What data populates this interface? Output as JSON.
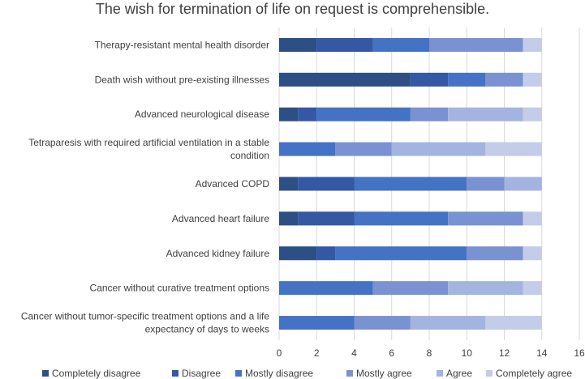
{
  "chart_data": {
    "type": "bar",
    "orientation": "horizontal",
    "stacked": true,
    "title": "The wish for termination of life on request is comprehensible.",
    "xlim": [
      0,
      16
    ],
    "xticks": [
      0,
      2,
      4,
      6,
      8,
      10,
      12,
      14,
      16
    ],
    "grid": "vertical",
    "legend_position": "bottom",
    "categories": [
      [
        "Therapy-resistant mental health disorder"
      ],
      [
        "Death wish without pre-existing illnesses"
      ],
      [
        "Advanced neurological disease"
      ],
      [
        "Tetraparesis with required artificial ventilation in a stable",
        "condition"
      ],
      [
        "Advanced COPD"
      ],
      [
        "Advanced heart failure"
      ],
      [
        "Advanced kidney failure"
      ],
      [
        "Cancer without curative treatment options"
      ],
      [
        "Cancer without tumor-specific treatment options and a life",
        "expectancy of days to weeks"
      ]
    ],
    "series": [
      {
        "name": "Completely disagree",
        "color": "#2e4f86",
        "values": [
          2,
          7,
          1,
          0,
          1,
          1,
          2,
          0,
          0
        ]
      },
      {
        "name": "Disagree",
        "color": "#3458a3",
        "values": [
          3,
          2,
          1,
          0,
          3,
          3,
          1,
          0,
          0
        ]
      },
      {
        "name": "Mostly disagree",
        "color": "#4472c4",
        "values": [
          3,
          2,
          5,
          3,
          6,
          5,
          7,
          5,
          4
        ]
      },
      {
        "name": "Mostly agree",
        "color": "#7a92d2",
        "values": [
          5,
          2,
          2,
          3,
          2,
          4,
          3,
          4,
          3
        ]
      },
      {
        "name": "Agree",
        "color": "#a4b4e0",
        "values": [
          0,
          0,
          4,
          5,
          2,
          0,
          0,
          4,
          4
        ]
      },
      {
        "name": "Completely agree",
        "color": "#c3cce9",
        "values": [
          1,
          1,
          1,
          3,
          0,
          1,
          1,
          1,
          3
        ]
      }
    ]
  }
}
